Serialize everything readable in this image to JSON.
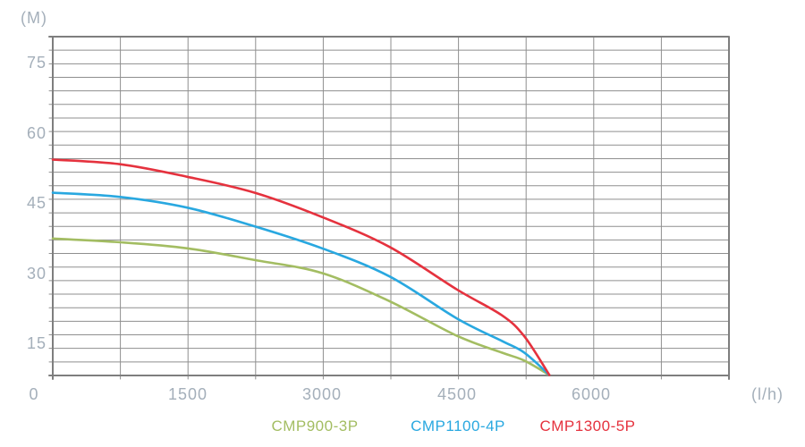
{
  "chart_data": {
    "type": "line",
    "title": "",
    "xlabel": "(l/h)",
    "ylabel": "(M)",
    "xlim": [
      0,
      7530
    ],
    "ylim": [
      8.1,
      80.6
    ],
    "grid": {
      "on": true,
      "x_divisions": 10,
      "y_divisions": 25
    },
    "x_ticks": [
      {
        "value": 0,
        "label": "0"
      },
      {
        "value": 1500,
        "label": "1500"
      },
      {
        "value": 3000,
        "label": "3000"
      },
      {
        "value": 4500,
        "label": "4500"
      },
      {
        "value": 6000,
        "label": "6000"
      }
    ],
    "y_ticks": [
      {
        "value": 15,
        "label": "15"
      },
      {
        "value": 30,
        "label": "30"
      },
      {
        "value": 45,
        "label": "45"
      },
      {
        "value": 60,
        "label": "60"
      },
      {
        "value": 75,
        "label": "75"
      }
    ],
    "legend_position": "bottom",
    "series": [
      {
        "name": "CMP900-3P",
        "color": "#a3bd62",
        "points": [
          [
            0,
            37.4
          ],
          [
            750,
            36.6
          ],
          [
            1500,
            35.3
          ],
          [
            2250,
            32.8
          ],
          [
            3000,
            30.0
          ],
          [
            3750,
            24.0
          ],
          [
            4500,
            16.6
          ],
          [
            5000,
            13.0
          ],
          [
            5250,
            11.3
          ],
          [
            5530,
            8.2
          ]
        ]
      },
      {
        "name": "CMP1100-4P",
        "color": "#29a8e0",
        "points": [
          [
            0,
            47.2
          ],
          [
            750,
            46.3
          ],
          [
            1500,
            44.0
          ],
          [
            2250,
            40.0
          ],
          [
            3000,
            35.3
          ],
          [
            3750,
            29.3
          ],
          [
            4500,
            20.3
          ],
          [
            5000,
            15.5
          ],
          [
            5250,
            13.0
          ],
          [
            5530,
            8.2
          ]
        ]
      },
      {
        "name": "CMP1300-5P",
        "color": "#e5323e",
        "points": [
          [
            0,
            54.3
          ],
          [
            750,
            53.3
          ],
          [
            1500,
            50.6
          ],
          [
            2250,
            47.2
          ],
          [
            3000,
            42.0
          ],
          [
            3750,
            35.6
          ],
          [
            4500,
            26.5
          ],
          [
            5000,
            21.0
          ],
          [
            5250,
            16.5
          ],
          [
            5530,
            8.2
          ]
        ]
      }
    ],
    "colors": {
      "grid_line": "#8f8f8f",
      "border": "#7e7e7e",
      "axis_text": "#a4afba",
      "background": "#ffffff"
    }
  }
}
